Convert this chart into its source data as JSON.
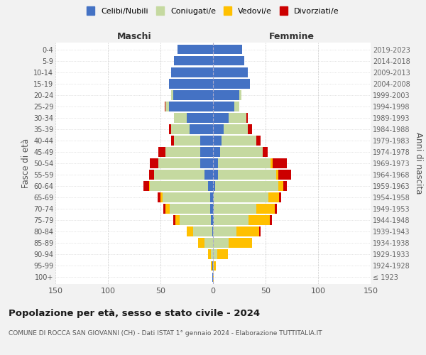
{
  "age_groups": [
    "100+",
    "95-99",
    "90-94",
    "85-89",
    "80-84",
    "75-79",
    "70-74",
    "65-69",
    "60-64",
    "55-59",
    "50-54",
    "45-49",
    "40-44",
    "35-39",
    "30-34",
    "25-29",
    "20-24",
    "15-19",
    "10-14",
    "5-9",
    "0-4"
  ],
  "birth_years": [
    "≤ 1923",
    "1924-1928",
    "1929-1933",
    "1934-1938",
    "1939-1943",
    "1944-1948",
    "1949-1953",
    "1954-1958",
    "1959-1963",
    "1964-1968",
    "1969-1973",
    "1974-1978",
    "1979-1983",
    "1984-1988",
    "1989-1993",
    "1994-1998",
    "1999-2003",
    "2004-2008",
    "2009-2013",
    "2014-2018",
    "2019-2023"
  ],
  "colors": {
    "celibi": "#4472c4",
    "coniugati": "#c5d9a0",
    "vedovi": "#ffc000",
    "divorziati": "#cc0000"
  },
  "males": {
    "celibi": [
      1,
      1,
      0,
      0,
      1,
      2,
      3,
      3,
      5,
      8,
      12,
      12,
      12,
      22,
      25,
      42,
      38,
      42,
      40,
      37,
      34
    ],
    "coniugati": [
      0,
      0,
      2,
      8,
      18,
      30,
      38,
      45,
      55,
      48,
      40,
      33,
      25,
      18,
      12,
      3,
      2,
      0,
      0,
      0,
      0
    ],
    "vedovi": [
      0,
      1,
      3,
      6,
      6,
      4,
      4,
      2,
      1,
      0,
      0,
      0,
      0,
      0,
      0,
      0,
      0,
      0,
      0,
      0,
      0
    ],
    "divorziati": [
      0,
      0,
      0,
      0,
      0,
      2,
      2,
      3,
      5,
      5,
      8,
      7,
      3,
      2,
      0,
      1,
      0,
      0,
      0,
      0,
      0
    ]
  },
  "females": {
    "celibi": [
      0,
      0,
      0,
      0,
      0,
      1,
      1,
      1,
      2,
      5,
      5,
      7,
      8,
      10,
      15,
      20,
      25,
      35,
      33,
      30,
      28
    ],
    "coniugati": [
      0,
      1,
      4,
      15,
      22,
      33,
      40,
      52,
      60,
      55,
      50,
      40,
      33,
      23,
      17,
      5,
      2,
      0,
      0,
      0,
      0
    ],
    "vedovi": [
      1,
      2,
      10,
      22,
      22,
      20,
      18,
      10,
      5,
      2,
      2,
      0,
      0,
      0,
      0,
      0,
      0,
      0,
      0,
      0,
      0
    ],
    "divorziati": [
      0,
      0,
      0,
      0,
      1,
      2,
      2,
      2,
      3,
      12,
      13,
      5,
      4,
      4,
      1,
      0,
      0,
      0,
      0,
      0,
      0
    ]
  },
  "xlim": 150,
  "title": "Popolazione per età, sesso e stato civile - 2024",
  "subtitle": "COMUNE DI ROCCA SAN GIOVANNI (CH) - Dati ISTAT 1° gennaio 2024 - Elaborazione TUTTITALIA.IT",
  "ylabel_left": "Fasce di età",
  "ylabel_right": "Anni di nascita",
  "legend_labels": [
    "Celibi/Nubili",
    "Coniugati/e",
    "Vedovi/e",
    "Divorziati/e"
  ],
  "maschi_label": "Maschi",
  "femmine_label": "Femmine",
  "bg_color": "#f2f2f2",
  "plot_bg_color": "#ffffff"
}
